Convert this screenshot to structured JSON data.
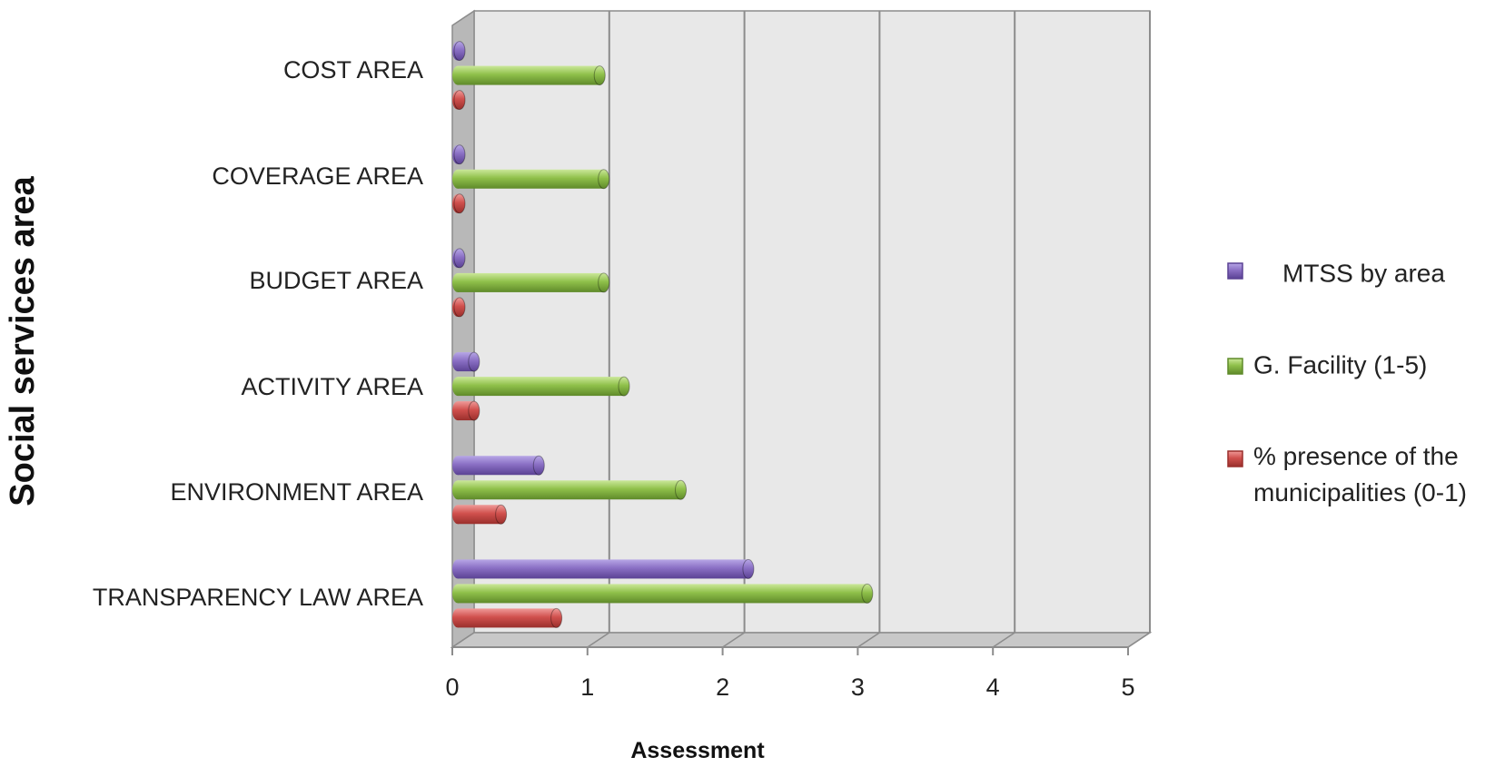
{
  "chart_data": {
    "type": "bar",
    "orientation": "horizontal",
    "style": "3d-cylinder",
    "categories": [
      "COST AREA",
      "COVERAGE AREA",
      "BUDGET AREA",
      "ACTIVITY AREA",
      "ENVIRONMENT AREA",
      "TRANSPARENCY LAW AREA"
    ],
    "series": [
      {
        "name": "MTSS by area",
        "color": "#8a6fc4",
        "values": [
          0,
          0,
          0,
          0.12,
          0.6,
          2.15
        ]
      },
      {
        "name": "G. Facility (1-5)",
        "color": "#8fc04a",
        "values": [
          1.05,
          1.08,
          1.08,
          1.23,
          1.65,
          3.03
        ]
      },
      {
        "name": "% presence of the municipalities (0-1)",
        "color": "#d0504d",
        "values": [
          0,
          0,
          0,
          0.12,
          0.32,
          0.73
        ]
      }
    ],
    "xlabel": "Assessment",
    "ylabel": "Social  services  area",
    "xlim": [
      0,
      5
    ],
    "xticks": [
      "0",
      "1",
      "2",
      "3",
      "4",
      "5"
    ],
    "grid": "vertical",
    "legend_position": "right"
  }
}
